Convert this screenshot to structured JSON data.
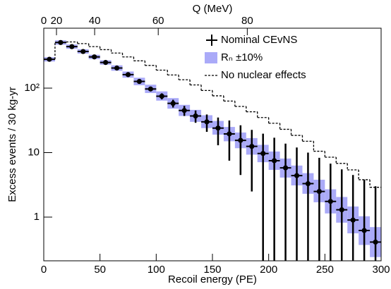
{
  "chart_data": {
    "type": "histogram",
    "x_label": "Recoil energy (PE)",
    "y_label": "Excess events / 30 kg-yr",
    "x2_label": "Q (MeV)",
    "bins": [
      0,
      10,
      20,
      30,
      40,
      50,
      60,
      70,
      80,
      90,
      100,
      110,
      120,
      130,
      140,
      150,
      160,
      170,
      180,
      190,
      200,
      210,
      220,
      230,
      240,
      250,
      260,
      270,
      280,
      290,
      300
    ],
    "xlim": [
      0,
      300
    ],
    "xticks": [
      0,
      50,
      100,
      150,
      200,
      250,
      300
    ],
    "ylim": [
      0.21,
      850
    ],
    "yscale": "log",
    "yticks": [
      1,
      10,
      {
        "value": 100,
        "label": "10²"
      }
    ],
    "x2lim": [
      0,
      103
    ],
    "x2scale": "sqrt",
    "x2ticks": [
      0,
      20,
      40,
      60,
      80
    ],
    "legend": "upper right",
    "series": [
      {
        "name": "Nominal CEvNS",
        "color": "#000000",
        "values": [
          280,
          510,
          440,
          370,
          305,
          250,
          205,
          162,
          127,
          97,
          75,
          58,
          45,
          37,
          30,
          24,
          19.5,
          15.5,
          12.5,
          9.7,
          7.5,
          5.8,
          4.4,
          3.3,
          2.5,
          1.75,
          1.3,
          0.9,
          0.62,
          0.41
        ],
        "errors": [
          15,
          25,
          22,
          18,
          15,
          12,
          10,
          8,
          7,
          6,
          8,
          8,
          8,
          8,
          9,
          11,
          12,
          11,
          10,
          10,
          9.5,
          8,
          7.6,
          6.7,
          5.8,
          5,
          4.2,
          3.6,
          3.2,
          2.6
        ]
      },
      {
        "name": "Rₙ ±10%",
        "color": "#aaaaf8",
        "lower": [
          259,
          472,
          407,
          343,
          282,
          231,
          186,
          145,
          111,
          84,
          64,
          48,
          37,
          30,
          24,
          19,
          15,
          11.7,
          9.3,
          7.1,
          5.4,
          4.1,
          3.1,
          2.3,
          1.7,
          1.14,
          0.82,
          0.56,
          0.37,
          0.24
        ],
        "upper": [
          302,
          551,
          475,
          400,
          329,
          270,
          226,
          181,
          145,
          113,
          89,
          70,
          55,
          46,
          38,
          31,
          25,
          20.5,
          16.8,
          13.2,
          10.4,
          8.1,
          6.3,
          4.8,
          3.8,
          2.7,
          2.05,
          1.46,
          1.03,
          0.7
        ]
      },
      {
        "name": "No nuclear effects",
        "color": "#000000",
        "linestyle": "dashed",
        "values": [
          280,
          510,
          520,
          490,
          440,
          395,
          350,
          305,
          265,
          225,
          190,
          160,
          135,
          112,
          92,
          76,
          63,
          52,
          43,
          35,
          28.5,
          23,
          18.5,
          15,
          10.5,
          8.5,
          6.8,
          5.4,
          3.8,
          2.9
        ]
      }
    ]
  }
}
